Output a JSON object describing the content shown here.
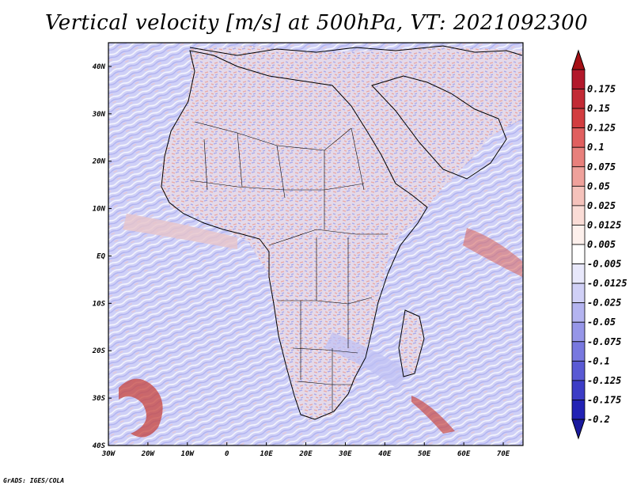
{
  "title": "Vertical velocity [m/s] at 500hPa, VT: 2021092300",
  "credit": "GrADS: IGES/COLA",
  "map": {
    "lon_range": [
      -30,
      75
    ],
    "lat_range": [
      -40,
      45
    ],
    "lon_ticks": [
      {
        "value": -30,
        "label": "30W"
      },
      {
        "value": -20,
        "label": "20W"
      },
      {
        "value": -10,
        "label": "10W"
      },
      {
        "value": 0,
        "label": "0"
      },
      {
        "value": 10,
        "label": "10E"
      },
      {
        "value": 20,
        "label": "20E"
      },
      {
        "value": 30,
        "label": "30E"
      },
      {
        "value": 40,
        "label": "40E"
      },
      {
        "value": 50,
        "label": "50E"
      },
      {
        "value": 60,
        "label": "60E"
      },
      {
        "value": 70,
        "label": "70E"
      }
    ],
    "lat_ticks": [
      {
        "value": 40,
        "label": "40N"
      },
      {
        "value": 30,
        "label": "30N"
      },
      {
        "value": 20,
        "label": "20N"
      },
      {
        "value": 10,
        "label": "10N"
      },
      {
        "value": 0,
        "label": "EQ"
      },
      {
        "value": -10,
        "label": "10S"
      },
      {
        "value": -20,
        "label": "20S"
      },
      {
        "value": -30,
        "label": "30S"
      },
      {
        "value": -40,
        "label": "40S"
      }
    ]
  },
  "colorbar": {
    "levels": [
      {
        "label": "0.175",
        "color": "#b2182b"
      },
      {
        "label": "0.15",
        "color": "#c22a35"
      },
      {
        "label": "0.125",
        "color": "#d23d40"
      },
      {
        "label": "0.1",
        "color": "#e05f5f"
      },
      {
        "label": "0.075",
        "color": "#e8807c"
      },
      {
        "label": "0.05",
        "color": "#efa19b"
      },
      {
        "label": "0.025",
        "color": "#f5c2bb"
      },
      {
        "label": "0.0125",
        "color": "#fadcd6"
      },
      {
        "label": "0.005",
        "color": "#fdf0ec"
      },
      {
        "label": "-0.005",
        "color": "#ffffff"
      },
      {
        "label": "-0.0125",
        "color": "#e8e8fb"
      },
      {
        "label": "-0.025",
        "color": "#d0d0f6"
      },
      {
        "label": "-0.05",
        "color": "#b4b4f0"
      },
      {
        "label": "-0.075",
        "color": "#9696e8"
      },
      {
        "label": "-0.1",
        "color": "#7878df"
      },
      {
        "label": "-0.125",
        "color": "#5a5ad4"
      },
      {
        "label": "-0.175",
        "color": "#3c3cc6"
      },
      {
        "label": "-0.2",
        "color": "#2222b4"
      }
    ],
    "top_arrow_color": "#a50f15",
    "bottom_arrow_color": "#1a1a9e"
  }
}
